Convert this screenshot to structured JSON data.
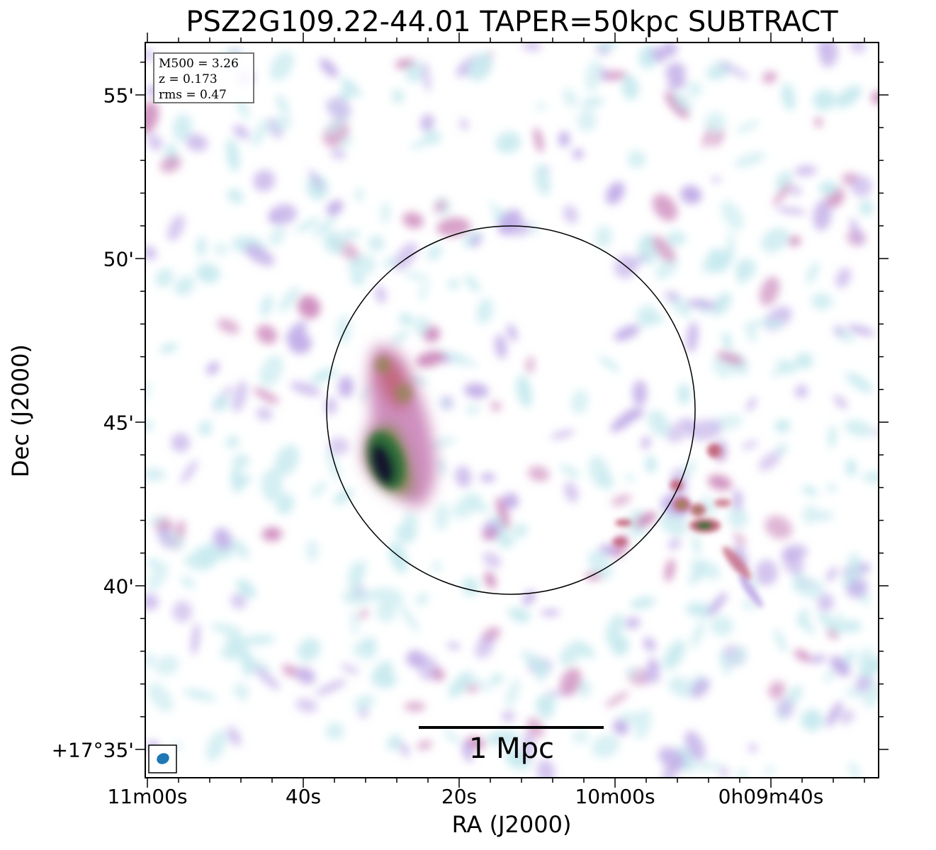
{
  "title": "PSZ2G109.22-44.01 TAPER=50kpc SUBTRACT",
  "axes": {
    "xlabel": "RA (J2000)",
    "ylabel": "Dec (J2000)",
    "x_ticks": [
      "11m00s",
      "40s",
      "20s",
      "10m00s",
      "0h09m40s"
    ],
    "y_ticks": [
      "55'",
      "50'",
      "45'",
      "40'",
      "+17°35'"
    ]
  },
  "info": {
    "m500": "M500 = 3.26",
    "z": "z = 0.173",
    "rms": "rms = 0.47"
  },
  "scale_bar": {
    "label": "1 Mpc"
  },
  "colors": {
    "faint": "#c8eaef",
    "lavender": "#c2aee8",
    "pink": "#cf8fbf",
    "rose": "#c4687f",
    "olive": "#8c8a4e",
    "green": "#2f6e3a",
    "dark": "#14182e",
    "beam": "#1f77b4",
    "circle": "#000000"
  }
}
